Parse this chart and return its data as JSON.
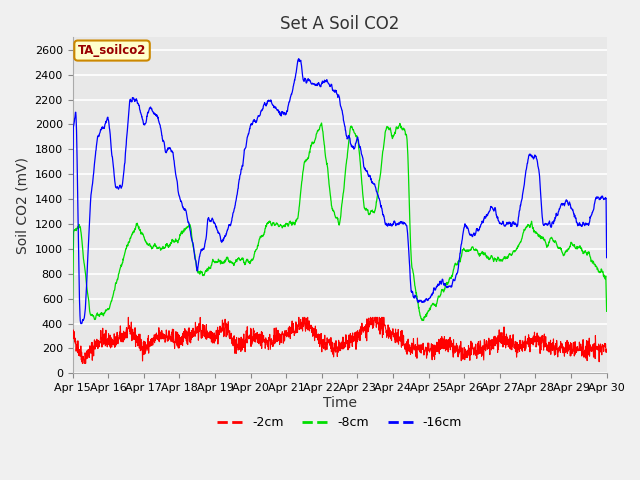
{
  "title": "Set A Soil CO2",
  "ylabel": "Soil CO2 (mV)",
  "xlabel": "Time",
  "ylim": [
    0,
    2700
  ],
  "xlim": [
    0,
    15
  ],
  "x_tick_labels": [
    "Apr 15",
    "Apr 16",
    "Apr 17",
    "Apr 18",
    "Apr 19",
    "Apr 20",
    "Apr 21",
    "Apr 22",
    "Apr 23",
    "Apr 24",
    "Apr 25",
    "Apr 26",
    "Apr 27",
    "Apr 28",
    "Apr 29",
    "Apr 30"
  ],
  "bg_color": "#f0f0f0",
  "plot_bg_color": "#e8e8e8",
  "legend_label": "TA_soilco2",
  "legend_bg": "#ffffcc",
  "legend_border": "#cc8800",
  "line_colors": {
    "red": "#ff0000",
    "green": "#00dd00",
    "blue": "#0000ff"
  },
  "series_labels": [
    "-2cm",
    "-8cm",
    "-16cm"
  ],
  "title_fontsize": 12,
  "axis_fontsize": 10,
  "tick_fontsize": 8,
  "yticks": [
    0,
    200,
    400,
    600,
    800,
    1000,
    1200,
    1400,
    1600,
    1800,
    2000,
    2200,
    2400,
    2600
  ]
}
